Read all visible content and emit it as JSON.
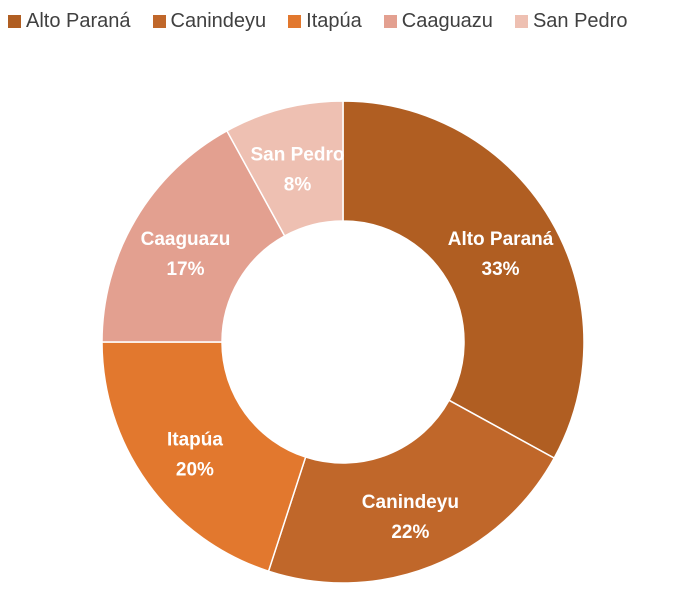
{
  "chart_data": {
    "type": "pie",
    "title": "",
    "donut": true,
    "legend_position": "top",
    "labels_show": [
      "category",
      "percent"
    ],
    "categories": [
      "Alto Paraná",
      "Canindeyu",
      "Itapúa",
      "Caaguazu",
      "San Pedro"
    ],
    "values": [
      33,
      22,
      20,
      17,
      8
    ],
    "value_labels": [
      "33%",
      "22%",
      "20%",
      "17%",
      "8%"
    ],
    "colors": [
      "#B05E22",
      "#C0672A",
      "#E2782E",
      "#E3A090",
      "#EEC0B2"
    ]
  }
}
